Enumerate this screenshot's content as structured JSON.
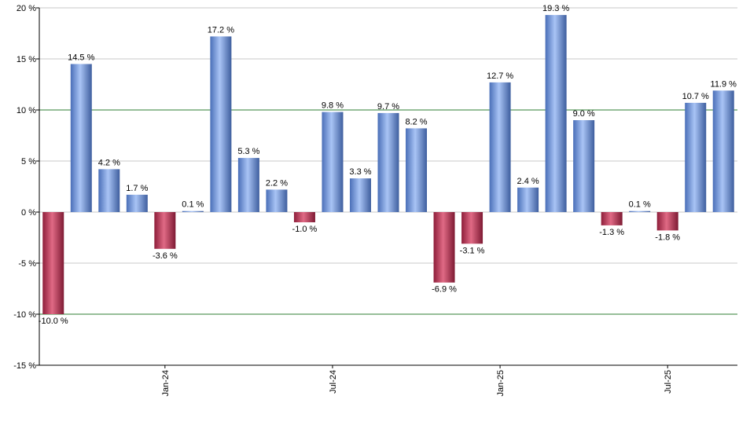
{
  "chart_data": {
    "type": "bar",
    "title": "",
    "xlabel": "",
    "ylabel": "",
    "ylim": [
      -15,
      20
    ],
    "yticks": [
      -15,
      -10,
      -5,
      0,
      5,
      10,
      15,
      20
    ],
    "ytick_labels": [
      "-15 %",
      "-10 %",
      "-5 %",
      "0 %",
      "5 %",
      "10 %",
      "15 %",
      "20 %"
    ],
    "grid": true,
    "reference_lines": [
      10,
      -10
    ],
    "x_tick_labels": [
      {
        "label": "Jan-24",
        "index": 4
      },
      {
        "label": "Jul-24",
        "index": 10
      },
      {
        "label": "Jan-25",
        "index": 16
      },
      {
        "label": "Jul-25",
        "index": 22
      }
    ],
    "values": [
      -10.0,
      14.5,
      4.2,
      1.7,
      -3.6,
      0.1,
      17.2,
      5.3,
      2.2,
      -1.0,
      9.8,
      3.3,
      9.7,
      8.2,
      -6.9,
      -3.1,
      12.7,
      2.4,
      19.3,
      9.0,
      -1.3,
      0.1,
      -1.8,
      10.7,
      11.9
    ],
    "data_labels": [
      "-10.0 %",
      "14.5 %",
      "4.2 %",
      "1.7 %",
      "-3.6 %",
      "0.1 %",
      "17.2 %",
      "5.3 %",
      "2.2 %",
      "-1.0 %",
      "9.8 %",
      "3.3 %",
      "9.7 %",
      "8.2 %",
      "-6.9 %",
      "-3.1 %",
      "12.7 %",
      "2.4 %",
      "19.3 %",
      "9.0 %",
      "-1.3 %",
      "0.1 %",
      "-1.8 %",
      "10.7 %",
      "11.9 %"
    ],
    "colors": {
      "positive": "#7b9ee6",
      "negative": "#c43a5a",
      "grid": "#c8c8c8",
      "reference": "#2e7d32",
      "axis": "#000000"
    }
  }
}
